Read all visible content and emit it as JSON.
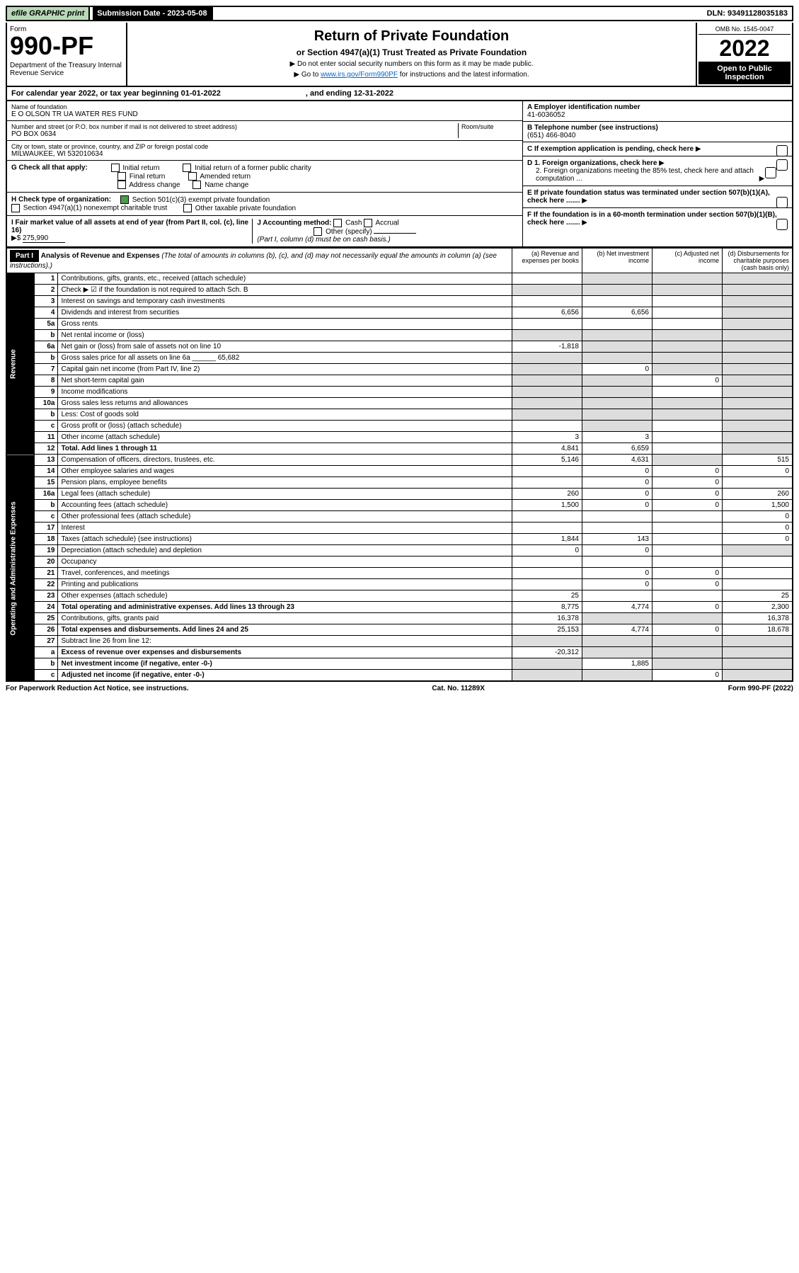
{
  "top": {
    "efile": "efile GRAPHIC print",
    "submission": "Submission Date - 2023-05-08",
    "dln": "DLN: 93491128035183"
  },
  "header": {
    "form_word": "Form",
    "form_num": "990-PF",
    "dept": "Department of the Treasury\nInternal Revenue Service",
    "title": "Return of Private Foundation",
    "subtitle": "or Section 4947(a)(1) Trust Treated as Private Foundation",
    "note1": "▶ Do not enter social security numbers on this form as it may be made public.",
    "note2_pre": "▶ Go to ",
    "note2_link": "www.irs.gov/Form990PF",
    "note2_post": " for instructions and the latest information.",
    "omb": "OMB No. 1545-0047",
    "year": "2022",
    "open": "Open to Public Inspection"
  },
  "cal": {
    "text": "For calendar year 2022, or tax year beginning 01-01-2022",
    "ending": ", and ending 12-31-2022"
  },
  "info": {
    "name_lbl": "Name of foundation",
    "name": "E O OLSON TR UA WATER RES FUND",
    "addr_lbl": "Number and street (or P.O. box number if mail is not delivered to street address)",
    "addr": "PO BOX 0634",
    "room_lbl": "Room/suite",
    "city_lbl": "City or town, state or province, country, and ZIP or foreign postal code",
    "city": "MILWAUKEE, WI  532010634",
    "a_lbl": "A Employer identification number",
    "a_val": "41-6036052",
    "b_lbl": "B Telephone number (see instructions)",
    "b_val": "(651) 466-8040",
    "c_lbl": "C If exemption application is pending, check here",
    "d1_lbl": "D 1. Foreign organizations, check here",
    "d2_lbl": "2. Foreign organizations meeting the 85% test, check here and attach computation ...",
    "e_lbl": "E If private foundation status was terminated under section 507(b)(1)(A), check here .......",
    "f_lbl": "F If the foundation is in a 60-month termination under section 507(b)(1)(B), check here ......."
  },
  "g": {
    "lbl": "G Check all that apply:",
    "opts": [
      "Initial return",
      "Initial return of a former public charity",
      "Final return",
      "Amended return",
      "Address change",
      "Name change"
    ]
  },
  "h": {
    "lbl": "H Check type of organization:",
    "o1": "Section 501(c)(3) exempt private foundation",
    "o2": "Section 4947(a)(1) nonexempt charitable trust",
    "o3": "Other taxable private foundation"
  },
  "i": {
    "lbl": "I Fair market value of all assets at end of year (from Part II, col. (c), line 16)",
    "arrow": "▶$",
    "val": "275,990"
  },
  "j": {
    "lbl": "J Accounting method:",
    "o1": "Cash",
    "o2": "Accrual",
    "o3": "Other (specify)",
    "note": "(Part I, column (d) must be on cash basis.)"
  },
  "part1": {
    "badge": "Part I",
    "title": "Analysis of Revenue and Expenses",
    "title_note": "(The total of amounts in columns (b), (c), and (d) may not necessarily equal the amounts in column (a) (see instructions).)",
    "col_a": "(a) Revenue and expenses per books",
    "col_b": "(b) Net investment income",
    "col_c": "(c) Adjusted net income",
    "col_d": "(d) Disbursements for charitable purposes (cash basis only)"
  },
  "vlabels": {
    "rev": "Revenue",
    "exp": "Operating and Administrative Expenses"
  },
  "rows": [
    {
      "n": "1",
      "d": "Contributions, gifts, grants, etc., received (attach schedule)",
      "a": "",
      "b": "",
      "c": "",
      "dd": "",
      "sa": false,
      "sb": true,
      "sc": true,
      "sd": true
    },
    {
      "n": "2",
      "d": "Check ▶ ☑ if the foundation is not required to attach Sch. B",
      "a": "",
      "b": "",
      "c": "",
      "dd": "",
      "sa": true,
      "sb": true,
      "sc": true,
      "sd": true
    },
    {
      "n": "3",
      "d": "Interest on savings and temporary cash investments",
      "a": "",
      "b": "",
      "c": "",
      "dd": "",
      "sa": false,
      "sb": false,
      "sc": false,
      "sd": true
    },
    {
      "n": "4",
      "d": "Dividends and interest from securities",
      "a": "6,656",
      "b": "6,656",
      "c": "",
      "dd": "",
      "sa": false,
      "sb": false,
      "sc": false,
      "sd": true
    },
    {
      "n": "5a",
      "d": "Gross rents",
      "a": "",
      "b": "",
      "c": "",
      "dd": "",
      "sa": false,
      "sb": false,
      "sc": false,
      "sd": true
    },
    {
      "n": "b",
      "d": "Net rental income or (loss)",
      "a": "",
      "b": "",
      "c": "",
      "dd": "",
      "sa": true,
      "sb": true,
      "sc": true,
      "sd": true
    },
    {
      "n": "6a",
      "d": "Net gain or (loss) from sale of assets not on line 10",
      "a": "-1,818",
      "b": "",
      "c": "",
      "dd": "",
      "sa": false,
      "sb": true,
      "sc": true,
      "sd": true
    },
    {
      "n": "b",
      "d": "Gross sales price for all assets on line 6a ______ 65,682",
      "a": "",
      "b": "",
      "c": "",
      "dd": "",
      "sa": true,
      "sb": true,
      "sc": true,
      "sd": true
    },
    {
      "n": "7",
      "d": "Capital gain net income (from Part IV, line 2)",
      "a": "",
      "b": "0",
      "c": "",
      "dd": "",
      "sa": true,
      "sb": false,
      "sc": true,
      "sd": true
    },
    {
      "n": "8",
      "d": "Net short-term capital gain",
      "a": "",
      "b": "",
      "c": "0",
      "dd": "",
      "sa": true,
      "sb": true,
      "sc": false,
      "sd": true
    },
    {
      "n": "9",
      "d": "Income modifications",
      "a": "",
      "b": "",
      "c": "",
      "dd": "",
      "sa": true,
      "sb": true,
      "sc": false,
      "sd": true
    },
    {
      "n": "10a",
      "d": "Gross sales less returns and allowances",
      "a": "",
      "b": "",
      "c": "",
      "dd": "",
      "sa": true,
      "sb": true,
      "sc": true,
      "sd": true
    },
    {
      "n": "b",
      "d": "Less: Cost of goods sold",
      "a": "",
      "b": "",
      "c": "",
      "dd": "",
      "sa": true,
      "sb": true,
      "sc": true,
      "sd": true
    },
    {
      "n": "c",
      "d": "Gross profit or (loss) (attach schedule)",
      "a": "",
      "b": "",
      "c": "",
      "dd": "",
      "sa": false,
      "sb": true,
      "sc": false,
      "sd": true
    },
    {
      "n": "11",
      "d": "Other income (attach schedule)",
      "a": "3",
      "b": "3",
      "c": "",
      "dd": "",
      "sa": false,
      "sb": false,
      "sc": false,
      "sd": true
    },
    {
      "n": "12",
      "d": "Total. Add lines 1 through 11",
      "a": "4,841",
      "b": "6,659",
      "c": "",
      "dd": "",
      "sa": false,
      "sb": false,
      "sc": false,
      "sd": true,
      "bold": true
    },
    {
      "n": "13",
      "d": "Compensation of officers, directors, trustees, etc.",
      "a": "5,146",
      "b": "4,631",
      "c": "",
      "dd": "515",
      "sa": false,
      "sb": false,
      "sc": true,
      "sd": false
    },
    {
      "n": "14",
      "d": "Other employee salaries and wages",
      "a": "",
      "b": "0",
      "c": "0",
      "dd": "0",
      "sa": false,
      "sb": false,
      "sc": false,
      "sd": false
    },
    {
      "n": "15",
      "d": "Pension plans, employee benefits",
      "a": "",
      "b": "0",
      "c": "0",
      "dd": "",
      "sa": false,
      "sb": false,
      "sc": false,
      "sd": false
    },
    {
      "n": "16a",
      "d": "Legal fees (attach schedule)",
      "a": "260",
      "b": "0",
      "c": "0",
      "dd": "260",
      "sa": false,
      "sb": false,
      "sc": false,
      "sd": false
    },
    {
      "n": "b",
      "d": "Accounting fees (attach schedule)",
      "a": "1,500",
      "b": "0",
      "c": "0",
      "dd": "1,500",
      "sa": false,
      "sb": false,
      "sc": false,
      "sd": false
    },
    {
      "n": "c",
      "d": "Other professional fees (attach schedule)",
      "a": "",
      "b": "",
      "c": "",
      "dd": "0",
      "sa": false,
      "sb": false,
      "sc": false,
      "sd": false
    },
    {
      "n": "17",
      "d": "Interest",
      "a": "",
      "b": "",
      "c": "",
      "dd": "0",
      "sa": false,
      "sb": false,
      "sc": false,
      "sd": false
    },
    {
      "n": "18",
      "d": "Taxes (attach schedule) (see instructions)",
      "a": "1,844",
      "b": "143",
      "c": "",
      "dd": "0",
      "sa": false,
      "sb": false,
      "sc": false,
      "sd": false
    },
    {
      "n": "19",
      "d": "Depreciation (attach schedule) and depletion",
      "a": "0",
      "b": "0",
      "c": "",
      "dd": "",
      "sa": false,
      "sb": false,
      "sc": false,
      "sd": true
    },
    {
      "n": "20",
      "d": "Occupancy",
      "a": "",
      "b": "",
      "c": "",
      "dd": "",
      "sa": false,
      "sb": false,
      "sc": false,
      "sd": false
    },
    {
      "n": "21",
      "d": "Travel, conferences, and meetings",
      "a": "",
      "b": "0",
      "c": "0",
      "dd": "",
      "sa": false,
      "sb": false,
      "sc": false,
      "sd": false
    },
    {
      "n": "22",
      "d": "Printing and publications",
      "a": "",
      "b": "0",
      "c": "0",
      "dd": "",
      "sa": false,
      "sb": false,
      "sc": false,
      "sd": false
    },
    {
      "n": "23",
      "d": "Other expenses (attach schedule)",
      "a": "25",
      "b": "",
      "c": "",
      "dd": "25",
      "sa": false,
      "sb": false,
      "sc": false,
      "sd": false
    },
    {
      "n": "24",
      "d": "Total operating and administrative expenses. Add lines 13 through 23",
      "a": "8,775",
      "b": "4,774",
      "c": "0",
      "dd": "2,300",
      "sa": false,
      "sb": false,
      "sc": false,
      "sd": false,
      "bold": true
    },
    {
      "n": "25",
      "d": "Contributions, gifts, grants paid",
      "a": "16,378",
      "b": "",
      "c": "",
      "dd": "16,378",
      "sa": false,
      "sb": true,
      "sc": true,
      "sd": false
    },
    {
      "n": "26",
      "d": "Total expenses and disbursements. Add lines 24 and 25",
      "a": "25,153",
      "b": "4,774",
      "c": "0",
      "dd": "18,678",
      "sa": false,
      "sb": false,
      "sc": false,
      "sd": false,
      "bold": true
    },
    {
      "n": "27",
      "d": "Subtract line 26 from line 12:",
      "a": "",
      "b": "",
      "c": "",
      "dd": "",
      "sa": true,
      "sb": true,
      "sc": true,
      "sd": true
    },
    {
      "n": "a",
      "d": "Excess of revenue over expenses and disbursements",
      "a": "-20,312",
      "b": "",
      "c": "",
      "dd": "",
      "sa": false,
      "sb": true,
      "sc": true,
      "sd": true,
      "bold": true
    },
    {
      "n": "b",
      "d": "Net investment income (if negative, enter -0-)",
      "a": "",
      "b": "1,885",
      "c": "",
      "dd": "",
      "sa": true,
      "sb": false,
      "sc": true,
      "sd": true,
      "bold": true
    },
    {
      "n": "c",
      "d": "Adjusted net income (if negative, enter -0-)",
      "a": "",
      "b": "",
      "c": "0",
      "dd": "",
      "sa": true,
      "sb": true,
      "sc": false,
      "sd": true,
      "bold": true
    }
  ],
  "footer": {
    "left": "For Paperwork Reduction Act Notice, see instructions.",
    "mid": "Cat. No. 11289X",
    "right": "Form 990-PF (2022)"
  }
}
